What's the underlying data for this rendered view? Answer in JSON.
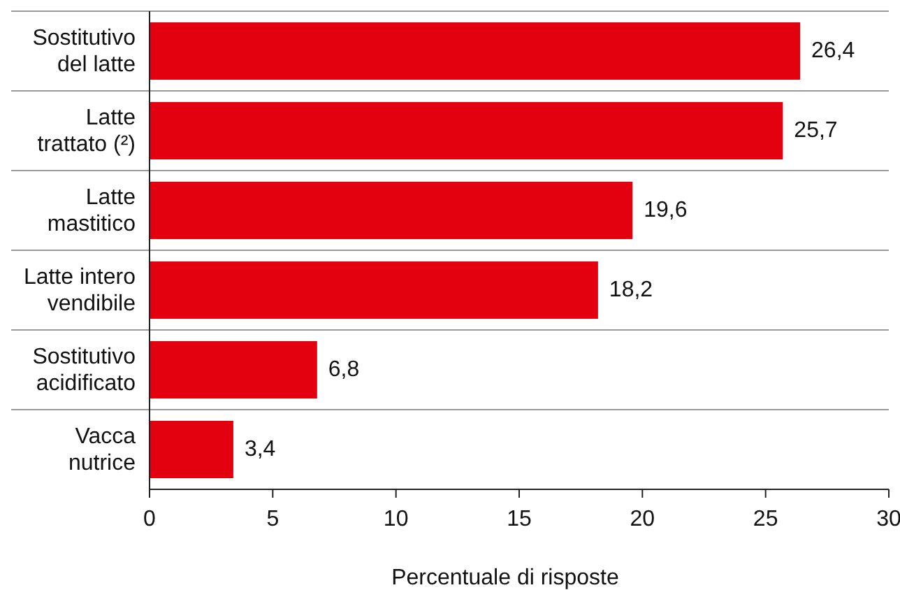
{
  "chart_data": {
    "type": "bar",
    "orientation": "horizontal",
    "categories": [
      "Sostitutivo\ndel latte",
      "Latte\ntrattato (²)",
      "Latte\nmastitico",
      "Latte intero\nvendibile",
      "Sostitutivo\nacidificato",
      "Vacca\nnutrice"
    ],
    "values": [
      26.4,
      25.7,
      19.6,
      18.2,
      6.8,
      3.4
    ],
    "value_labels": [
      "26,4",
      "25,7",
      "19,6",
      "18,2",
      "6,8",
      "3,4"
    ],
    "color": "#e3000f",
    "xlim": [
      0,
      30
    ],
    "xticks": [
      0,
      5,
      10,
      15,
      20,
      25,
      30
    ],
    "xlabel": "Percentuale di risposte",
    "grid": "y"
  }
}
